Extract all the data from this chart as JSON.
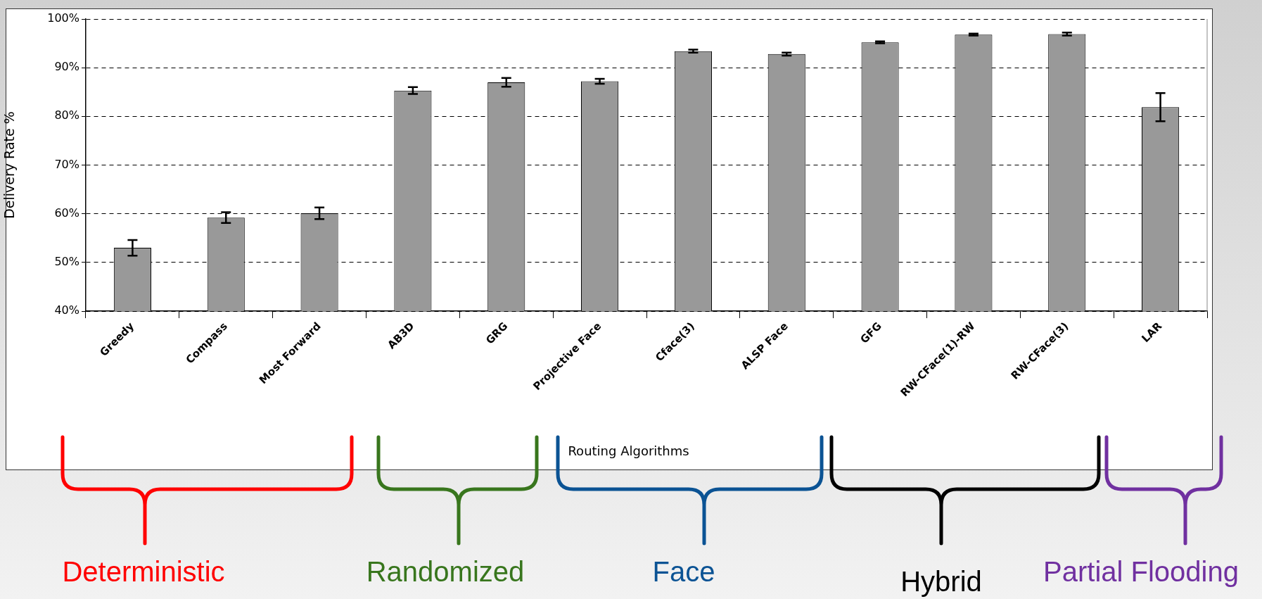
{
  "chart_data": {
    "type": "bar",
    "ylabel": "Delivery Rate %",
    "xlabel": "Routing Algorithms",
    "categories": [
      "Greedy",
      "Compass",
      "Most Forward",
      "AB3D",
      "GRG",
      "Projective Face",
      "Cface(3)",
      "ALSP Face",
      "GFG",
      "RW-CFace(1)-RW",
      "RW-CFace(3)",
      "LAR"
    ],
    "values": [
      53.0,
      59.2,
      60.1,
      85.3,
      87.0,
      87.2,
      93.4,
      92.8,
      95.2,
      96.8,
      96.9,
      81.9
    ],
    "errors": [
      1.6,
      1.1,
      1.2,
      0.7,
      0.9,
      0.5,
      0.3,
      0.3,
      0.2,
      0.2,
      0.3,
      2.9
    ],
    "color": "#999999",
    "ylim": [
      40,
      100
    ],
    "yticks": [
      {
        "value": 40,
        "label": "40%"
      },
      {
        "value": 50,
        "label": "50%"
      },
      {
        "value": 60,
        "label": "60%"
      },
      {
        "value": 70,
        "label": "70%"
      },
      {
        "value": 80,
        "label": "80%"
      },
      {
        "value": 90,
        "label": "90%"
      },
      {
        "value": 100,
        "label": "100%"
      }
    ],
    "grid": "y",
    "legend": false,
    "annotations": [
      "Deterministic",
      "Randomized",
      "Face",
      "Hybrid",
      "Partial Flooding"
    ]
  }
}
